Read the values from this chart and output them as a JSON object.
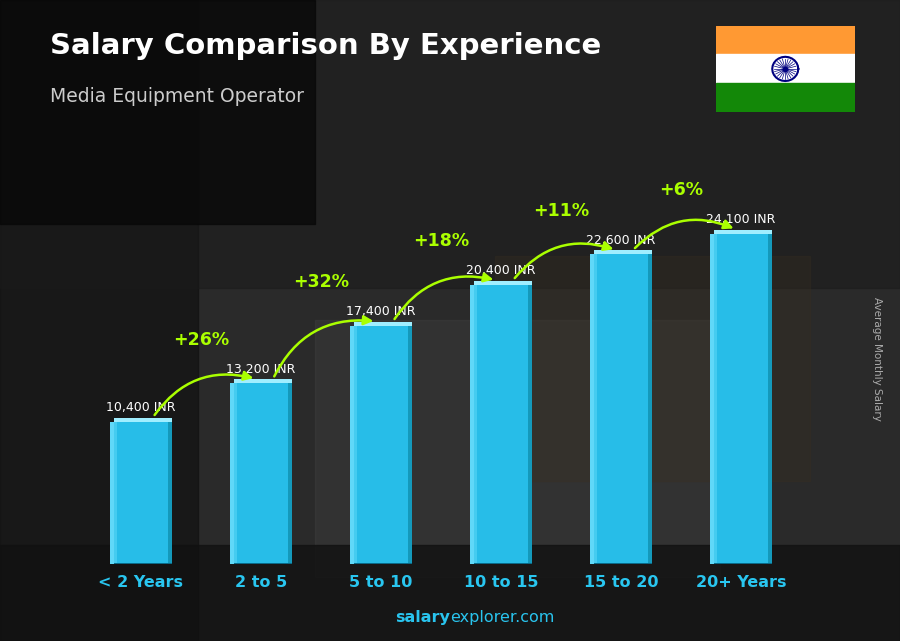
{
  "title": "Salary Comparison By Experience",
  "subtitle": "Media Equipment Operator",
  "categories": [
    "< 2 Years",
    "2 to 5",
    "5 to 10",
    "10 to 15",
    "15 to 20",
    "20+ Years"
  ],
  "values": [
    10400,
    13200,
    17400,
    20400,
    22600,
    24100
  ],
  "value_labels": [
    "10,400 INR",
    "13,200 INR",
    "17,400 INR",
    "20,400 INR",
    "22,600 INR",
    "24,100 INR"
  ],
  "pct_labels": [
    "+26%",
    "+32%",
    "+18%",
    "+11%",
    "+6%"
  ],
  "bar_left_color": "#00a8cc",
  "bar_main_color": "#29c4ee",
  "bar_highlight_color": "#70dfff",
  "bar_right_color": "#1ab3e0",
  "bar_top_color": "#90eeff",
  "title_color": "#ffffff",
  "subtitle_color": "#cccccc",
  "value_label_color": "#ffffff",
  "pct_color": "#aaff00",
  "xlabel_color": "#29c6f0",
  "ylabel_text": "Average Monthly Salary",
  "footer_bold": "salary",
  "footer_normal": "explorer.com",
  "background_color": "#2a2a35",
  "ylim": [
    0,
    29000
  ],
  "bar_width": 0.52
}
